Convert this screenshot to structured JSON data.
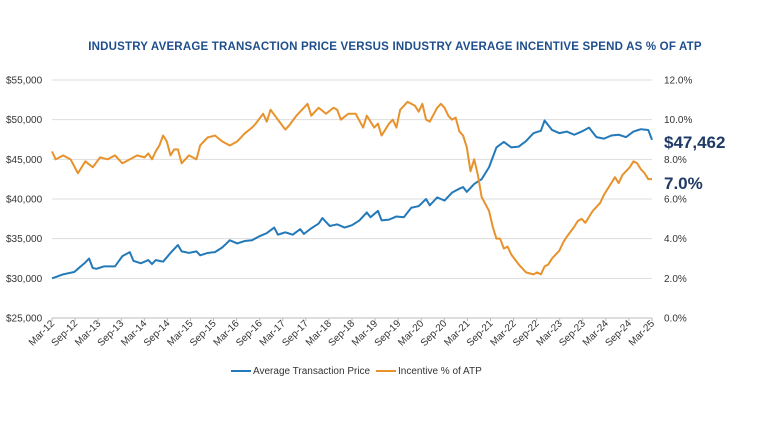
{
  "chart_data": {
    "type": "line",
    "title": "INDUSTRY AVERAGE TRANSACTION PRICE VERSUS INDUSTRY AVERAGE INCENTIVE SPEND AS % OF ATP",
    "xlabel": "",
    "ylabel_left": "",
    "ylabel_right": "",
    "x_tick_labels": [
      "Mar-12",
      "Sep-12",
      "Mar-13",
      "Sep-13",
      "Mar-14",
      "Sep-14",
      "Mar-15",
      "Sep-15",
      "Mar-16",
      "Sep-16",
      "Mar-17",
      "Sep-17",
      "Mar-18",
      "Sep-18",
      "Mar-19",
      "Sep-19",
      "Mar-20",
      "Sep-20",
      "Mar-21",
      "Sep-21",
      "Mar-22",
      "Sep-22",
      "Mar-23",
      "Sep-23",
      "Mar-24",
      "Sep-24",
      "Mar-25"
    ],
    "y_left_ticks": [
      "$25,000",
      "$30,000",
      "$35,000",
      "$40,000",
      "$45,000",
      "$50,000",
      "$55,000"
    ],
    "y_left_range": [
      25000,
      55000
    ],
    "y_right_ticks": [
      "0.0%",
      "2.0%",
      "4.0%",
      "6.0%",
      "8.0%",
      "10.0%",
      "12.0%"
    ],
    "y_right_range": [
      0,
      12
    ],
    "legend_position": "bottom-center",
    "colors": {
      "atp": "#2479b8",
      "incentive": "#e8922c",
      "title": "#1f4e8c",
      "end_label": "#1f3a66",
      "grid": "#dddddd"
    },
    "series": [
      {
        "name": "Average Transaction Price",
        "axis": "left",
        "end_label": "$47,462",
        "anchors": [
          [
            0,
            30000
          ],
          [
            3,
            30500
          ],
          [
            6,
            30800
          ],
          [
            9,
            32000
          ],
          [
            10,
            32500
          ],
          [
            11,
            31300
          ],
          [
            12,
            31200
          ],
          [
            14,
            31500
          ],
          [
            17,
            31500
          ],
          [
            19,
            32800
          ],
          [
            21,
            33300
          ],
          [
            22,
            32200
          ],
          [
            24,
            31900
          ],
          [
            26,
            32300
          ],
          [
            27,
            31800
          ],
          [
            28,
            32300
          ],
          [
            30,
            32100
          ],
          [
            32,
            33200
          ],
          [
            34,
            34200
          ],
          [
            35,
            33400
          ],
          [
            37,
            33200
          ],
          [
            39,
            33400
          ],
          [
            40,
            32900
          ],
          [
            42,
            33200
          ],
          [
            44,
            33300
          ],
          [
            46,
            33900
          ],
          [
            48,
            34800
          ],
          [
            50,
            34400
          ],
          [
            52,
            34700
          ],
          [
            54,
            34800
          ],
          [
            56,
            35300
          ],
          [
            58,
            35700
          ],
          [
            60,
            36400
          ],
          [
            61,
            35500
          ],
          [
            63,
            35800
          ],
          [
            65,
            35500
          ],
          [
            67,
            36200
          ],
          [
            68,
            35600
          ],
          [
            70,
            36300
          ],
          [
            72,
            36900
          ],
          [
            73,
            37600
          ],
          [
            75,
            36600
          ],
          [
            77,
            36800
          ],
          [
            79,
            36400
          ],
          [
            81,
            36700
          ],
          [
            83,
            37300
          ],
          [
            85,
            38300
          ],
          [
            86,
            37700
          ],
          [
            88,
            38500
          ],
          [
            89,
            37300
          ],
          [
            91,
            37400
          ],
          [
            93,
            37800
          ],
          [
            95,
            37700
          ],
          [
            97,
            38900
          ],
          [
            99,
            39100
          ],
          [
            101,
            40000
          ],
          [
            102,
            39200
          ],
          [
            104,
            40200
          ],
          [
            106,
            39800
          ],
          [
            108,
            40800
          ],
          [
            110,
            41300
          ],
          [
            111,
            41500
          ],
          [
            112,
            40900
          ],
          [
            114,
            41900
          ],
          [
            116,
            42500
          ],
          [
            118,
            44000
          ],
          [
            120,
            46500
          ],
          [
            122,
            47200
          ],
          [
            124,
            46500
          ],
          [
            126,
            46600
          ],
          [
            128,
            47300
          ],
          [
            130,
            48300
          ],
          [
            132,
            48600
          ],
          [
            133,
            49900
          ],
          [
            135,
            48700
          ],
          [
            137,
            48300
          ],
          [
            139,
            48500
          ],
          [
            141,
            48100
          ],
          [
            143,
            48500
          ],
          [
            145,
            49000
          ],
          [
            147,
            47800
          ],
          [
            149,
            47600
          ],
          [
            151,
            48000
          ],
          [
            153,
            48100
          ],
          [
            155,
            47800
          ],
          [
            157,
            48500
          ],
          [
            159,
            48800
          ],
          [
            161,
            48700
          ],
          [
            162,
            47462
          ]
        ]
      },
      {
        "name": "Incentive % of ATP",
        "axis": "right",
        "end_label": "7.0%",
        "anchors": [
          [
            0,
            8.4
          ],
          [
            1,
            8.0
          ],
          [
            3,
            8.2
          ],
          [
            5,
            8.0
          ],
          [
            7,
            7.3
          ],
          [
            9,
            7.9
          ],
          [
            11,
            7.6
          ],
          [
            13,
            8.1
          ],
          [
            15,
            8.0
          ],
          [
            17,
            8.2
          ],
          [
            19,
            7.8
          ],
          [
            21,
            8.0
          ],
          [
            23,
            8.2
          ],
          [
            25,
            8.1
          ],
          [
            26,
            8.3
          ],
          [
            27,
            8.0
          ],
          [
            28,
            8.4
          ],
          [
            29,
            8.7
          ],
          [
            30,
            9.2
          ],
          [
            31,
            8.9
          ],
          [
            32,
            8.2
          ],
          [
            33,
            8.5
          ],
          [
            34,
            8.5
          ],
          [
            35,
            7.8
          ],
          [
            37,
            8.2
          ],
          [
            39,
            8.0
          ],
          [
            40,
            8.7
          ],
          [
            42,
            9.1
          ],
          [
            44,
            9.2
          ],
          [
            46,
            8.9
          ],
          [
            48,
            8.7
          ],
          [
            50,
            8.9
          ],
          [
            52,
            9.3
          ],
          [
            54,
            9.6
          ],
          [
            55,
            9.8
          ],
          [
            57,
            10.3
          ],
          [
            58,
            9.9
          ],
          [
            59,
            10.5
          ],
          [
            61,
            10.0
          ],
          [
            63,
            9.5
          ],
          [
            64,
            9.7
          ],
          [
            66,
            10.2
          ],
          [
            68,
            10.6
          ],
          [
            69,
            10.8
          ],
          [
            70,
            10.2
          ],
          [
            72,
            10.6
          ],
          [
            74,
            10.3
          ],
          [
            76,
            10.6
          ],
          [
            77,
            10.5
          ],
          [
            78,
            10.0
          ],
          [
            80,
            10.3
          ],
          [
            82,
            10.3
          ],
          [
            84,
            9.6
          ],
          [
            85,
            10.2
          ],
          [
            87,
            9.6
          ],
          [
            88,
            9.8
          ],
          [
            89,
            9.2
          ],
          [
            91,
            9.8
          ],
          [
            92,
            10.0
          ],
          [
            93,
            9.6
          ],
          [
            94,
            10.5
          ],
          [
            96,
            10.9
          ],
          [
            98,
            10.7
          ],
          [
            99,
            10.4
          ],
          [
            100,
            10.8
          ],
          [
            101,
            10.0
          ],
          [
            102,
            9.9
          ],
          [
            104,
            10.6
          ],
          [
            105,
            10.8
          ],
          [
            106,
            10.6
          ],
          [
            107,
            10.2
          ],
          [
            108,
            10.0
          ],
          [
            109,
            10.1
          ],
          [
            110,
            9.4
          ],
          [
            111,
            9.2
          ],
          [
            112,
            8.6
          ],
          [
            113,
            7.4
          ],
          [
            114,
            8.0
          ],
          [
            115,
            7.2
          ],
          [
            116,
            6.1
          ],
          [
            118,
            5.4
          ],
          [
            119,
            4.6
          ],
          [
            120,
            4.0
          ],
          [
            121,
            4.0
          ],
          [
            122,
            3.5
          ],
          [
            123,
            3.6
          ],
          [
            124,
            3.2
          ],
          [
            126,
            2.7
          ],
          [
            127,
            2.5
          ],
          [
            128,
            2.3
          ],
          [
            130,
            2.2
          ],
          [
            131,
            2.3
          ],
          [
            132,
            2.2
          ],
          [
            133,
            2.6
          ],
          [
            134,
            2.7
          ],
          [
            135,
            3.0
          ],
          [
            137,
            3.4
          ],
          [
            138,
            3.8
          ],
          [
            139,
            4.1
          ],
          [
            141,
            4.6
          ],
          [
            142,
            4.9
          ],
          [
            143,
            5.0
          ],
          [
            144,
            4.8
          ],
          [
            146,
            5.4
          ],
          [
            148,
            5.8
          ],
          [
            149,
            6.2
          ],
          [
            150,
            6.5
          ],
          [
            151,
            6.8
          ],
          [
            152,
            7.1
          ],
          [
            153,
            6.8
          ],
          [
            154,
            7.2
          ],
          [
            155,
            7.4
          ],
          [
            156,
            7.6
          ],
          [
            157,
            7.9
          ],
          [
            158,
            7.8
          ],
          [
            159,
            7.5
          ],
          [
            160,
            7.3
          ],
          [
            161,
            7.0
          ],
          [
            162,
            7.0
          ]
        ]
      }
    ]
  }
}
